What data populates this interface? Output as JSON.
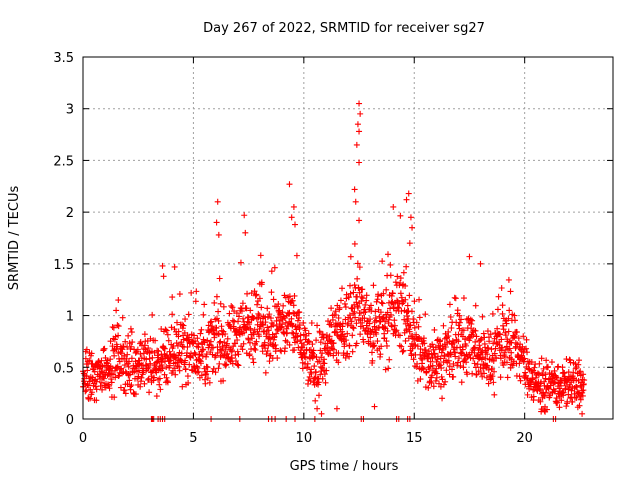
{
  "chart_data": {
    "type": "scatter",
    "title": "Day 267 of 2022, SRMTID for receiver sg27",
    "xlabel": "GPS time / hours",
    "ylabel": "SRMTID / TECUs",
    "xlim": [
      0,
      24
    ],
    "ylim": [
      0,
      3.5
    ],
    "grid": true,
    "marker": "plus",
    "x_ticks": [
      0,
      5,
      10,
      15,
      20
    ],
    "x_tick_labels": [
      "0",
      "5",
      "10",
      "15",
      "20"
    ],
    "y_ticks": [
      0,
      0.5,
      1,
      1.5,
      2,
      2.5,
      3,
      3.5
    ],
    "y_tick_labels": [
      "0",
      "0.5",
      "1",
      "1.5",
      "2",
      "2.5",
      "3",
      "3.5"
    ],
    "series": [
      {
        "name": "sg27",
        "color": "#ff0000",
        "profile": [
          [
            0.0,
            0.42
          ],
          [
            0.5,
            0.38
          ],
          [
            1.0,
            0.5
          ],
          [
            1.5,
            0.58
          ],
          [
            2.0,
            0.52
          ],
          [
            2.5,
            0.5
          ],
          [
            3.0,
            0.55
          ],
          [
            3.5,
            0.52
          ],
          [
            4.0,
            0.62
          ],
          [
            4.5,
            0.68
          ],
          [
            5.0,
            0.66
          ],
          [
            5.5,
            0.62
          ],
          [
            6.0,
            0.75
          ],
          [
            6.5,
            0.72
          ],
          [
            7.0,
            0.82
          ],
          [
            7.5,
            0.88
          ],
          [
            8.0,
            0.92
          ],
          [
            8.5,
            0.82
          ],
          [
            9.0,
            0.9
          ],
          [
            9.5,
            0.95
          ],
          [
            10.0,
            0.7
          ],
          [
            10.5,
            0.45
          ],
          [
            11.0,
            0.65
          ],
          [
            11.5,
            0.78
          ],
          [
            12.0,
            0.9
          ],
          [
            12.5,
            1.1
          ],
          [
            13.0,
            0.85
          ],
          [
            13.5,
            0.92
          ],
          [
            14.0,
            1.0
          ],
          [
            14.5,
            1.1
          ],
          [
            15.0,
            0.72
          ],
          [
            15.5,
            0.55
          ],
          [
            16.0,
            0.58
          ],
          [
            16.5,
            0.62
          ],
          [
            17.0,
            0.7
          ],
          [
            17.5,
            0.75
          ],
          [
            18.0,
            0.62
          ],
          [
            18.5,
            0.55
          ],
          [
            19.0,
            0.78
          ],
          [
            19.5,
            0.75
          ],
          [
            20.0,
            0.52
          ],
          [
            20.5,
            0.35
          ],
          [
            21.0,
            0.3
          ],
          [
            21.5,
            0.32
          ],
          [
            22.0,
            0.33
          ],
          [
            22.5,
            0.32
          ],
          [
            22.7,
            0.3
          ]
        ],
        "points": [
          [
            12.5,
            3.05
          ],
          [
            12.55,
            2.95
          ],
          [
            12.45,
            2.85
          ],
          [
            12.5,
            2.78
          ],
          [
            12.4,
            2.65
          ],
          [
            12.5,
            2.48
          ],
          [
            12.3,
            2.22
          ],
          [
            12.35,
            2.1
          ],
          [
            12.5,
            1.92
          ],
          [
            9.35,
            2.27
          ],
          [
            9.55,
            2.05
          ],
          [
            9.45,
            1.95
          ],
          [
            9.6,
            1.88
          ],
          [
            6.1,
            2.1
          ],
          [
            6.05,
            1.9
          ],
          [
            6.15,
            1.78
          ],
          [
            7.3,
            1.97
          ],
          [
            7.35,
            1.8
          ],
          [
            14.05,
            2.05
          ],
          [
            14.75,
            2.18
          ],
          [
            14.65,
            2.12
          ],
          [
            14.85,
            1.95
          ],
          [
            14.9,
            1.85
          ],
          [
            14.8,
            1.7
          ],
          [
            3.6,
            1.48
          ],
          [
            4.15,
            1.47
          ],
          [
            3.65,
            1.38
          ],
          [
            17.5,
            1.57
          ],
          [
            18.0,
            1.5
          ],
          [
            1.6,
            1.15
          ],
          [
            1.5,
            1.05
          ],
          [
            19.0,
            1.1
          ],
          [
            19.3,
            1.05
          ],
          [
            11.5,
            0.1
          ],
          [
            10.8,
            0.05
          ],
          [
            10.6,
            0.1
          ],
          [
            13.2,
            0.12
          ],
          [
            20.9,
            0.08
          ],
          [
            22.6,
            0.05
          ],
          [
            3.1,
            0.0
          ],
          [
            3.15,
            0.0
          ],
          [
            3.2,
            0.0
          ],
          [
            3.4,
            0.0
          ],
          [
            3.5,
            0.0
          ],
          [
            3.6,
            0.0
          ],
          [
            3.7,
            0.0
          ],
          [
            5.8,
            0.0
          ],
          [
            7.1,
            0.0
          ],
          [
            8.4,
            0.0
          ],
          [
            8.55,
            0.0
          ],
          [
            8.7,
            0.0
          ],
          [
            9.2,
            0.0
          ],
          [
            9.6,
            0.0
          ],
          [
            10.5,
            0.0
          ],
          [
            12.6,
            0.0
          ],
          [
            12.7,
            0.0
          ],
          [
            14.2,
            0.0
          ],
          [
            14.3,
            0.0
          ],
          [
            14.7,
            0.0
          ],
          [
            14.8,
            0.0
          ],
          [
            21.3,
            0.0
          ],
          [
            21.4,
            0.0
          ]
        ]
      }
    ]
  }
}
